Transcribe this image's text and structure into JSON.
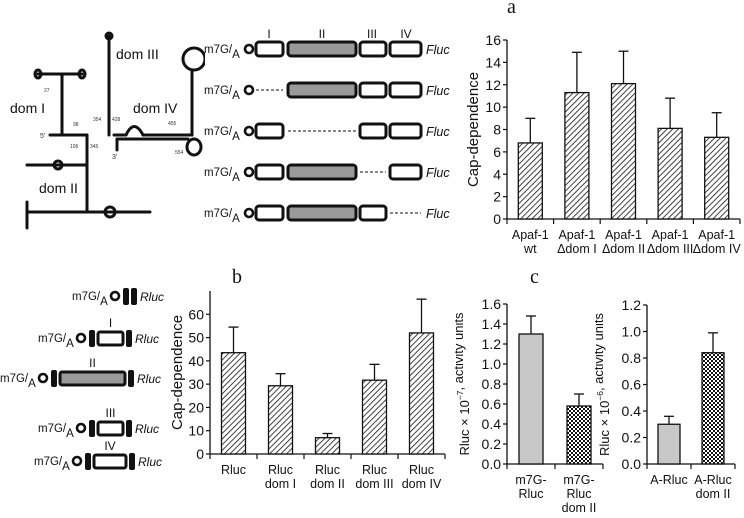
{
  "figure": {
    "panel_labels": {
      "a": "a",
      "b": "b",
      "c": "c"
    },
    "structure": {
      "domains": [
        "dom I",
        "dom II",
        "dom III",
        "dom IV"
      ],
      "positions": [
        "27",
        "98",
        "106",
        "345",
        "354",
        "428",
        "455",
        "554"
      ],
      "ends": [
        "5'",
        "3'"
      ]
    },
    "constructs_a": {
      "cap_label": "m7G/A",
      "domain_headers": [
        "I",
        "II",
        "III",
        "IV"
      ],
      "reporter": "Fluc",
      "rows": [
        "full",
        "ΔI",
        "ΔII",
        "ΔIII",
        "ΔIV"
      ]
    },
    "constructs_b": {
      "cap_label": "m7G/A",
      "reporter": "Rluc",
      "rows": [
        {
          "insert": ""
        },
        {
          "insert": "I"
        },
        {
          "insert": "II"
        },
        {
          "insert": "III"
        },
        {
          "insert": "IV"
        }
      ]
    }
  },
  "chart_data": [
    {
      "panel": "a",
      "type": "bar",
      "title": "",
      "xlabel": "",
      "ylabel": "Cap-dependence",
      "ylim": [
        0,
        16
      ],
      "yticks": [
        0,
        2,
        4,
        6,
        8,
        10,
        12,
        14,
        16
      ],
      "categories": [
        "Apaf-1\nwt",
        "Apaf-1\nΔdom I",
        "Apaf-1\nΔdom II",
        "Apaf-1\nΔdom III",
        "Apaf-1\nΔdom IV"
      ],
      "values": [
        6.8,
        11.3,
        12.1,
        8.1,
        7.3
      ],
      "error_upper": [
        9.0,
        14.9,
        15.0,
        10.8,
        9.5
      ],
      "fill": "hatched",
      "grid": false
    },
    {
      "panel": "b",
      "type": "bar",
      "title": "",
      "xlabel": "",
      "ylabel": "Cap-dependence",
      "ylim": [
        0,
        70
      ],
      "yticks": [
        0,
        10,
        20,
        30,
        40,
        50,
        60
      ],
      "categories": [
        "Rluc",
        "Rluc\ndom I",
        "Rluc\ndom II",
        "Rluc\ndom III",
        "Rluc\ndom IV"
      ],
      "values": [
        43.5,
        29.3,
        7.0,
        31.7,
        52.0
      ],
      "error_upper": [
        54.5,
        34.5,
        8.8,
        38.5,
        66.5
      ],
      "fill": "hatched",
      "grid": false
    },
    {
      "panel": "c-left",
      "type": "bar",
      "title": "",
      "xlabel": "",
      "ylabel": "Rluc × 10⁻⁷, activity units",
      "ylim": [
        0,
        1.6
      ],
      "yticks": [
        "0.0",
        "0.2",
        "0.4",
        "0.6",
        "0.8",
        "1.0",
        "1.2",
        "1.4",
        "1.6"
      ],
      "categories": [
        "m7G-\nRluc",
        "m7G-\nRluc\ndom II"
      ],
      "values": [
        1.3,
        0.58
      ],
      "error_upper": [
        1.48,
        0.7
      ],
      "fill": [
        "gray",
        "checkered"
      ],
      "grid": false
    },
    {
      "panel": "c-right",
      "type": "bar",
      "title": "",
      "xlabel": "",
      "ylabel": "Rluc × 10⁻⁶, activity units",
      "ylim": [
        0,
        1.2
      ],
      "yticks": [
        "0.0",
        "0.2",
        "0.4",
        "0.6",
        "0.8",
        "1.0",
        "1.2"
      ],
      "categories": [
        "A-Rluc",
        "A-Rluc\ndom II"
      ],
      "values": [
        0.3,
        0.84
      ],
      "error_upper": [
        0.36,
        0.99
      ],
      "fill": [
        "gray",
        "checkered"
      ],
      "grid": false
    }
  ]
}
